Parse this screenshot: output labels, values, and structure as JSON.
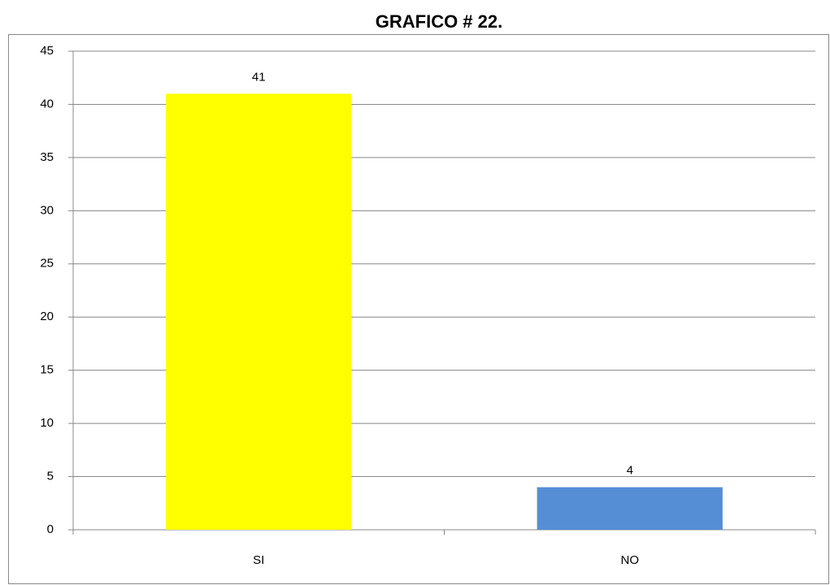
{
  "chart_data": {
    "type": "bar",
    "title": "GRAFICO # 22.",
    "categories": [
      "SI",
      "NO"
    ],
    "values": [
      41,
      4
    ],
    "colors": [
      "#ffff00",
      "#558ed5"
    ],
    "ylim": [
      0,
      45
    ],
    "yticks": [
      0,
      5,
      10,
      15,
      20,
      25,
      30,
      35,
      40,
      45
    ],
    "grid": true
  }
}
